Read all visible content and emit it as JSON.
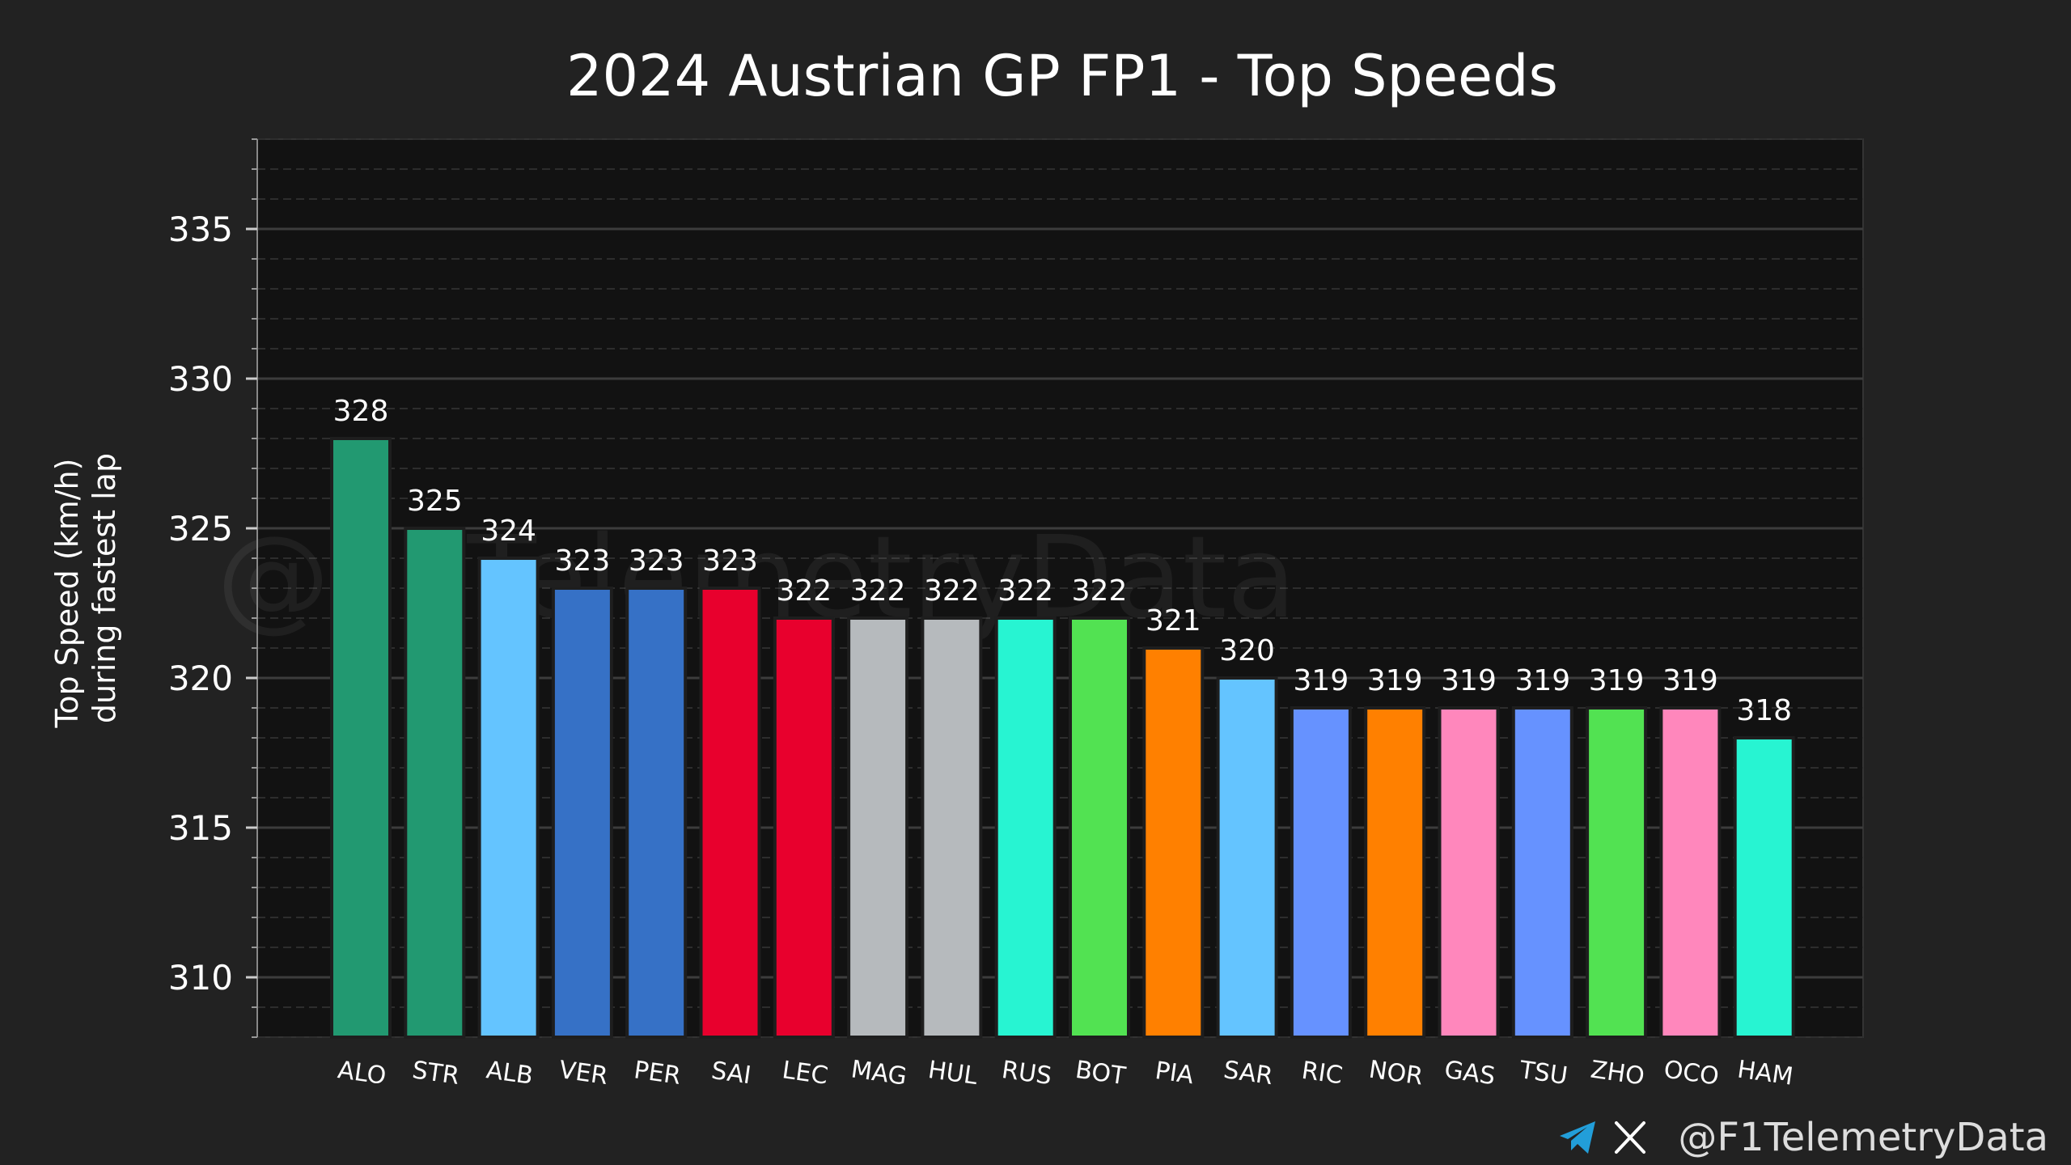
{
  "chart_data": {
    "type": "bar",
    "title": "2024 Austrian GP FP1 - Top Speeds",
    "xlabel": "",
    "ylabel_lines": [
      "Top Speed (km/h)",
      "during fastest lap"
    ],
    "ylim": [
      308,
      338
    ],
    "yticks": [
      310,
      315,
      320,
      325,
      330,
      335
    ],
    "grid": true,
    "categories": [
      "ALO",
      "STR",
      "ALB",
      "VER",
      "PER",
      "SAI",
      "LEC",
      "MAG",
      "HUL",
      "RUS",
      "BOT",
      "PIA",
      "SAR",
      "RIC",
      "NOR",
      "GAS",
      "TSU",
      "ZHO",
      "OCO",
      "HAM"
    ],
    "values": [
      328,
      325,
      324,
      323,
      323,
      323,
      322,
      322,
      322,
      322,
      322,
      321,
      320,
      319,
      319,
      319,
      319,
      319,
      319,
      318
    ],
    "colors": [
      "#229971",
      "#229971",
      "#64C4FF",
      "#3671C6",
      "#3671C6",
      "#E8002D",
      "#E8002D",
      "#B6BABD",
      "#B6BABD",
      "#27F4D2",
      "#52E252",
      "#FF8000",
      "#64C4FF",
      "#6692FF",
      "#FF8000",
      "#FF87BC",
      "#6692FF",
      "#52E252",
      "#FF87BC",
      "#27F4D2"
    ]
  },
  "watermark": "@F1TelemetryData",
  "footer": {
    "handle": "@F1TelemetryData",
    "icons": [
      "telegram-icon",
      "x-icon"
    ],
    "telegram_color": "#229ED9"
  }
}
